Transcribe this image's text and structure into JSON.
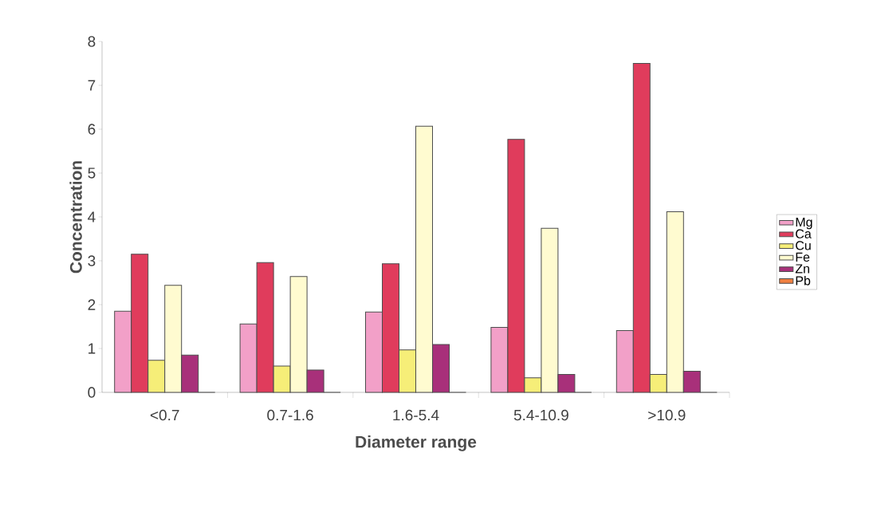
{
  "chart_data": {
    "type": "bar",
    "xlabel": "Diameter range",
    "ylabel": "Concentration",
    "categories": [
      "<0.7",
      "0.7-1.6",
      "1.6-5.4",
      "5.4-10.9",
      ">10.9"
    ],
    "series": [
      {
        "name": "Mg",
        "color": "#f2a0c8",
        "values": [
          1.85,
          1.56,
          1.83,
          1.48,
          1.41
        ]
      },
      {
        "name": "Ca",
        "color": "#e03c5c",
        "values": [
          3.15,
          2.96,
          2.93,
          5.77,
          7.5
        ]
      },
      {
        "name": "Cu",
        "color": "#f6ee78",
        "values": [
          0.73,
          0.6,
          0.97,
          0.33,
          0.41
        ]
      },
      {
        "name": "Fe",
        "color": "#fffbd0",
        "values": [
          2.44,
          2.64,
          6.07,
          3.74,
          4.12
        ]
      },
      {
        "name": "Zn",
        "color": "#a8307a",
        "values": [
          0.85,
          0.51,
          1.09,
          0.41,
          0.48
        ]
      },
      {
        "name": "Pb",
        "color": "#f08040",
        "values": [
          0,
          0,
          0,
          0,
          0
        ]
      }
    ],
    "ylim": [
      0,
      8
    ],
    "yticks": [
      0,
      1,
      2,
      3,
      4,
      5,
      6,
      7,
      8
    ],
    "grid": false,
    "legend": "right"
  }
}
